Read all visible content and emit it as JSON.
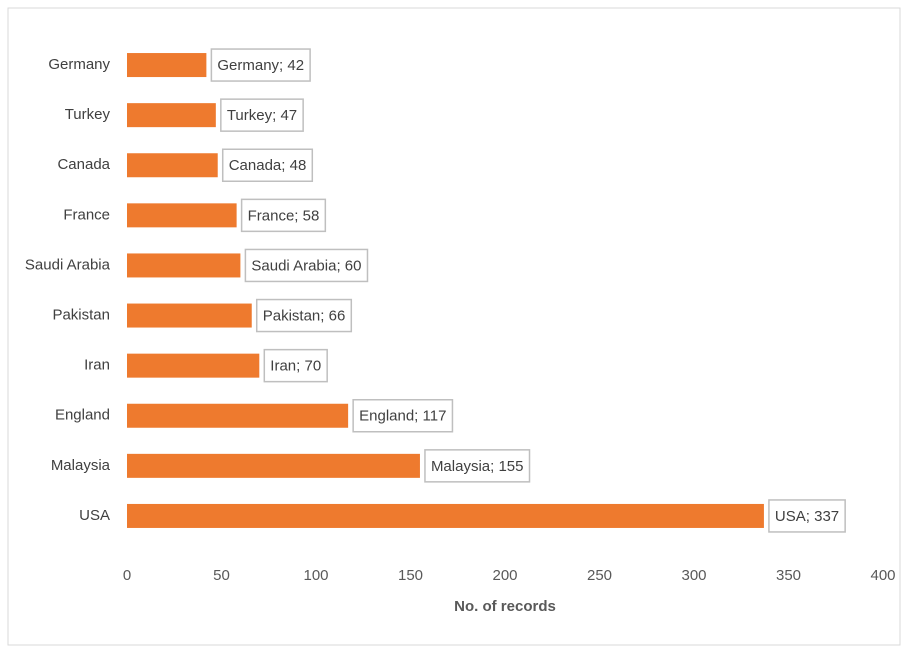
{
  "chart_data": {
    "type": "barh",
    "categories": [
      "Germany",
      "Turkey",
      "Canada",
      "France",
      "Saudi Arabia",
      "Pakistan",
      "Iran",
      "England",
      "Malaysia",
      "USA"
    ],
    "values": [
      42,
      47,
      48,
      58,
      60,
      66,
      70,
      117,
      155,
      337
    ],
    "value_labels": [
      "Germany; 42",
      "Turkey; 47",
      "Canada; 48",
      "France; 58",
      "Saudi Arabia; 60",
      "Pakistan; 66",
      "Iran; 70",
      "England; 117",
      "Malaysia; 155",
      "USA; 337"
    ],
    "color": "#ee7a2e",
    "xlabel": "No. of records",
    "xlim": [
      0,
      400
    ],
    "xticks": [
      0,
      50,
      100,
      150,
      200,
      250,
      300,
      350,
      400
    ],
    "grid": false
  }
}
